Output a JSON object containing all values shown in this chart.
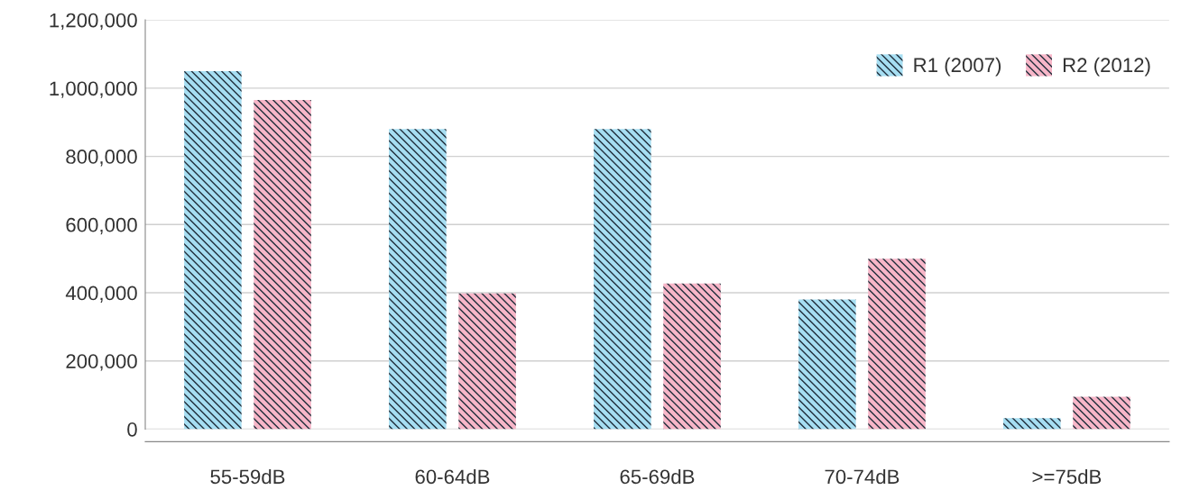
{
  "chart_data": {
    "type": "bar",
    "categories": [
      "55-59dB",
      "60-64dB",
      "65-69dB",
      "70-74dB",
      ">=75dB"
    ],
    "series": [
      {
        "name": "R1 (2007)",
        "color": "#a6def2",
        "values": [
          1050000,
          880000,
          880000,
          380000,
          32000
        ]
      },
      {
        "name": "R2 (2012)",
        "color": "#f7b6c8",
        "values": [
          965000,
          398000,
          427000,
          500000,
          95000
        ]
      }
    ],
    "ylim": [
      0,
      1200000
    ],
    "yticks": [
      {
        "value": 0,
        "label": "0"
      },
      {
        "value": 200000,
        "label": "200,000"
      },
      {
        "value": 400000,
        "label": "400,000"
      },
      {
        "value": 600000,
        "label": "600,000"
      },
      {
        "value": 800000,
        "label": "800,000"
      },
      {
        "value": 1000000,
        "label": "1,000,000"
      },
      {
        "value": 1200000,
        "label": "1,200,000"
      }
    ],
    "grid": "y",
    "legend": "top right"
  }
}
